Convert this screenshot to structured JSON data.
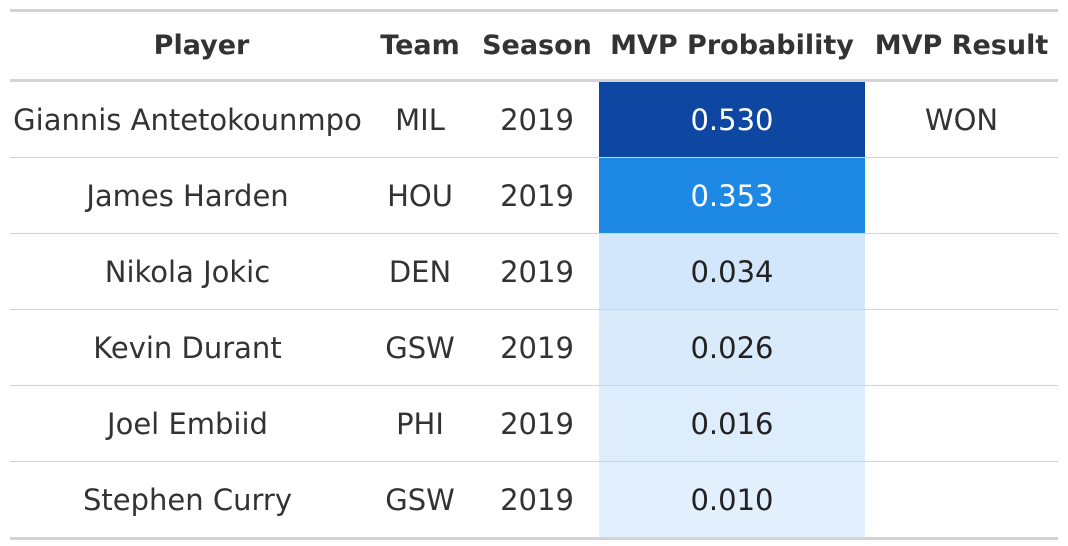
{
  "chart_data": {
    "type": "table",
    "columns": [
      "Player",
      "Team",
      "Season",
      "MVP Probability",
      "MVP Result"
    ],
    "rows": [
      {
        "player": "Giannis Antetokounmpo",
        "team": "MIL",
        "season": "2019",
        "probability": "0.530",
        "result": "WON",
        "fill": "#0d47a1",
        "text_color": "#ffffff"
      },
      {
        "player": "James Harden",
        "team": "HOU",
        "season": "2019",
        "probability": "0.353",
        "result": "",
        "fill": "#1e88e5",
        "text_color": "#ffffff"
      },
      {
        "player": "Nikola Jokic",
        "team": "DEN",
        "season": "2019",
        "probability": "0.034",
        "result": "",
        "fill": "#d2e7fb",
        "text_color": "#222222"
      },
      {
        "player": "Kevin Durant",
        "team": "GSW",
        "season": "2019",
        "probability": "0.026",
        "result": "",
        "fill": "#d9ebfb",
        "text_color": "#222222"
      },
      {
        "player": "Joel Embiid",
        "team": "PHI",
        "season": "2019",
        "probability": "0.016",
        "result": "",
        "fill": "#deedfc",
        "text_color": "#222222"
      },
      {
        "player": "Stephen Curry",
        "team": "GSW",
        "season": "2019",
        "probability": "0.010",
        "result": "",
        "fill": "#e2effc",
        "text_color": "#222222"
      }
    ]
  }
}
